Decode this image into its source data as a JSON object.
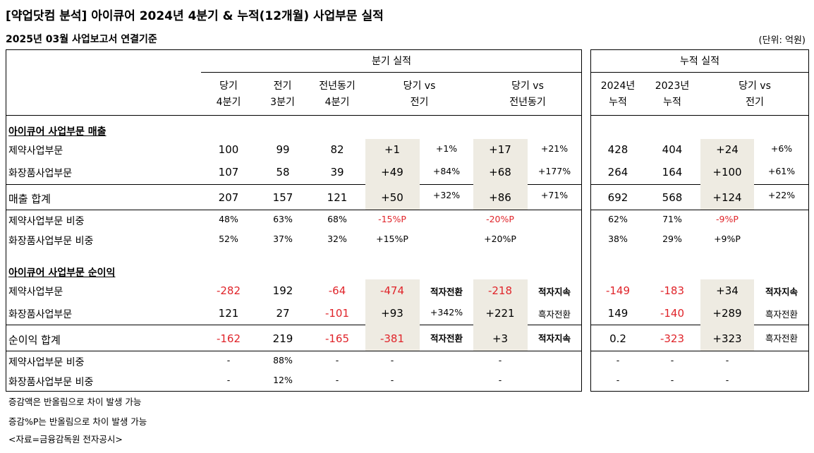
{
  "title": "[약업닷컴 분석] 아이큐어 2024년 4분기 & 누적(12개월) 사업부문 실적",
  "subtitle": "2025년 03월 사업보고서 연결기준",
  "unit": "(단위: 억원)",
  "headers": {
    "quarter_group": "분기 실적",
    "cum_group": "누적 실적",
    "q_cur": [
      "당기",
      "4분기"
    ],
    "q_prev": [
      "전기",
      "3분기"
    ],
    "q_yoy": [
      "전년동기",
      "4분기"
    ],
    "vs_prev": [
      "당기 vs",
      "전기"
    ],
    "vs_yoy": [
      "당기 vs",
      "전년동기"
    ],
    "c_2024": [
      "2024년",
      "누적"
    ],
    "c_2023": [
      "2023년",
      "누적"
    ],
    "c_vs": [
      "당기 vs",
      "전기"
    ]
  },
  "sections": {
    "sales": "아이큐어 사업부문 매출",
    "profit": "아이큐어 사업부문 순이익"
  },
  "rows": [
    {
      "label": "제약사업부문",
      "vals": [
        "100",
        "99",
        "82",
        "+1",
        "+1%",
        "+17",
        "+21%",
        "428",
        "404",
        "+24",
        "+6%"
      ]
    },
    {
      "label": "화장품사업부문",
      "vals": [
        "107",
        "58",
        "39",
        "+49",
        "+84%",
        "+68",
        "+177%",
        "264",
        "164",
        "+100",
        "+61%"
      ]
    },
    {
      "label": "매출 합계",
      "vals": [
        "207",
        "157",
        "121",
        "+50",
        "+32%",
        "+86",
        "+71%",
        "692",
        "568",
        "+124",
        "+22%"
      ]
    },
    {
      "label": "제약사업부문 비중",
      "vals": [
        "48%",
        "63%",
        "68%",
        "-15%P",
        "",
        "-20%P",
        "",
        "62%",
        "71%",
        "-9%P",
        ""
      ]
    },
    {
      "label": "화장품사업부문 비중",
      "vals": [
        "52%",
        "37%",
        "32%",
        "+15%P",
        "",
        "+20%P",
        "",
        "38%",
        "29%",
        "+9%P",
        ""
      ]
    },
    {
      "label": "제약사업부문",
      "vals": [
        "-282",
        "192",
        "-64",
        "-474",
        "적자전환",
        "-218",
        "적자지속",
        "-149",
        "-183",
        "+34",
        "적자지속"
      ]
    },
    {
      "label": "화장품사업부문",
      "vals": [
        "121",
        "27",
        "-101",
        "+93",
        "+342%",
        "+221",
        "흑자전환",
        "149",
        "-140",
        "+289",
        "흑자전환"
      ]
    },
    {
      "label": "순이익 합계",
      "vals": [
        "-162",
        "219",
        "-165",
        "-381",
        "적자전환",
        "+3",
        "적자지속",
        "0.2",
        "-323",
        "+323",
        "흑자전환"
      ]
    },
    {
      "label": "제약사업부문 비중",
      "vals": [
        "-",
        "88%",
        "-",
        "-",
        "",
        "-",
        "",
        "-",
        "-",
        "-",
        ""
      ]
    },
    {
      "label": "화장품사업부문 비중",
      "vals": [
        "-",
        "12%",
        "-",
        "-",
        "",
        "-",
        "",
        "-",
        "-",
        "-",
        ""
      ]
    }
  ],
  "notes": [
    "증감액은 반올림으로 차이 발생 가능",
    "증감%P는 반올림으로 차이 발생 가능",
    "<자료=금융감독원 전자공시>"
  ],
  "colors": {
    "negative": "#e0242a",
    "shade": "#eeebe2"
  }
}
